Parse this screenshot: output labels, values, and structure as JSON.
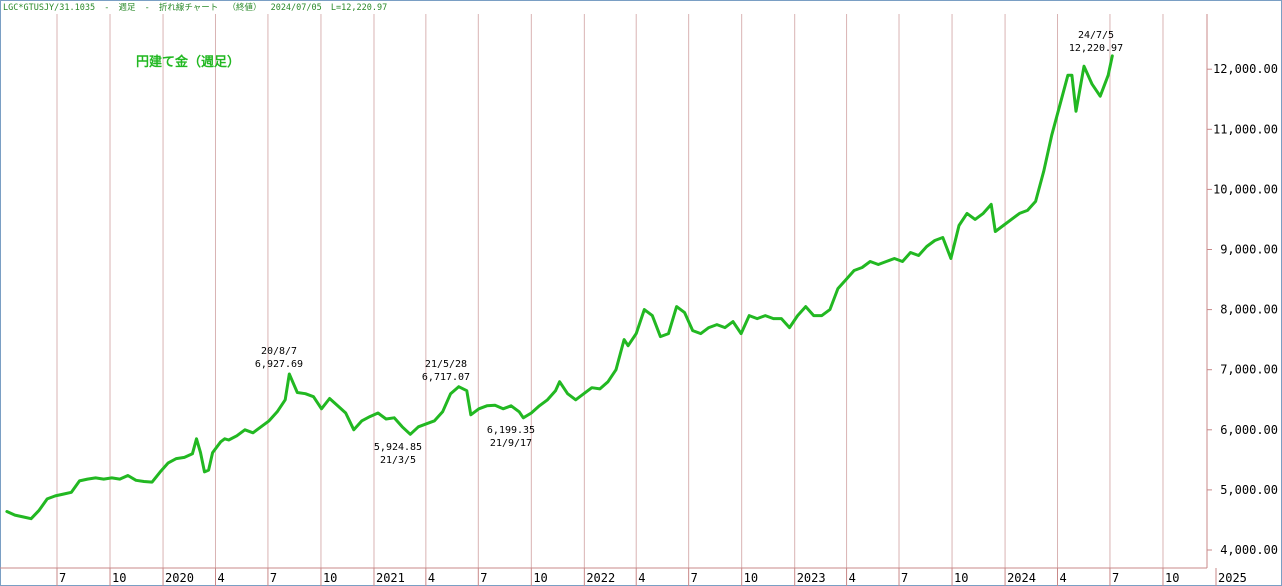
{
  "header": {
    "symbol": "LGC*GTUSJY/31.1035",
    "sep1": "-",
    "period": "週足",
    "sep2": "-",
    "chart_kind": "折れ線チャート",
    "price_kind": "（終値）",
    "date": "2024/07/05",
    "last": "L=12,220.97"
  },
  "colors": {
    "line": "#22b822",
    "title": "#22b822",
    "header": "#2a8a2a",
    "grid": "#d9b3b3",
    "text": "#000000"
  },
  "chart_data": {
    "type": "line",
    "title": "円建て金（週足）",
    "xlabel": "",
    "ylabel": "",
    "ylim": [
      3900,
      13000
    ],
    "grid": true,
    "grid_orientation": "vertical",
    "y_axis_position": "right",
    "y_ticks": [
      {
        "value": 4000,
        "label": "4,000.00"
      },
      {
        "value": 5000,
        "label": "5,000.00"
      },
      {
        "value": 6000,
        "label": "6,000.00"
      },
      {
        "value": 7000,
        "label": "7,000.00"
      },
      {
        "value": 8000,
        "label": "8,000.00"
      },
      {
        "value": 9000,
        "label": "9,000.00"
      },
      {
        "value": 10000,
        "label": "10,000.00"
      },
      {
        "value": 11000,
        "label": "11,000.00"
      },
      {
        "value": 12000,
        "label": "12,000.00"
      }
    ],
    "x_ticks": [
      {
        "date": "2019-07-01",
        "label": "7"
      },
      {
        "date": "2019-10-01",
        "label": "10"
      },
      {
        "date": "2020-01-01",
        "label": "2020"
      },
      {
        "date": "2020-04-01",
        "label": "4"
      },
      {
        "date": "2020-07-01",
        "label": "7"
      },
      {
        "date": "2020-10-01",
        "label": "10"
      },
      {
        "date": "2021-01-01",
        "label": "2021"
      },
      {
        "date": "2021-04-01",
        "label": "4"
      },
      {
        "date": "2021-07-01",
        "label": "7"
      },
      {
        "date": "2021-10-01",
        "label": "10"
      },
      {
        "date": "2022-01-01",
        "label": "2022"
      },
      {
        "date": "2022-04-01",
        "label": "4"
      },
      {
        "date": "2022-07-01",
        "label": "7"
      },
      {
        "date": "2022-10-01",
        "label": "10"
      },
      {
        "date": "2023-01-01",
        "label": "2023"
      },
      {
        "date": "2023-04-01",
        "label": "4"
      },
      {
        "date": "2023-07-01",
        "label": "7"
      },
      {
        "date": "2023-10-01",
        "label": "10"
      },
      {
        "date": "2024-01-01",
        "label": "2024"
      },
      {
        "date": "2024-04-01",
        "label": "4"
      },
      {
        "date": "2024-07-01",
        "label": "7"
      },
      {
        "date": "2024-10-01",
        "label": "10"
      },
      {
        "date": "2025-01-01",
        "label": "2025"
      }
    ],
    "series": [
      {
        "points": [
          [
            "2019-04-05",
            4640
          ],
          [
            "2019-04-19",
            4580
          ],
          [
            "2019-05-03",
            4550
          ],
          [
            "2019-05-17",
            4520
          ],
          [
            "2019-05-31",
            4660
          ],
          [
            "2019-06-14",
            4850
          ],
          [
            "2019-06-28",
            4900
          ],
          [
            "2019-07-12",
            4930
          ],
          [
            "2019-07-26",
            4960
          ],
          [
            "2019-08-09",
            5150
          ],
          [
            "2019-08-23",
            5180
          ],
          [
            "2019-09-06",
            5200
          ],
          [
            "2019-09-20",
            5180
          ],
          [
            "2019-10-04",
            5200
          ],
          [
            "2019-10-18",
            5180
          ],
          [
            "2019-11-01",
            5240
          ],
          [
            "2019-11-15",
            5160
          ],
          [
            "2019-11-29",
            5140
          ],
          [
            "2019-12-13",
            5130
          ],
          [
            "2019-12-27",
            5300
          ],
          [
            "2020-01-10",
            5450
          ],
          [
            "2020-01-24",
            5520
          ],
          [
            "2020-02-07",
            5540
          ],
          [
            "2020-02-21",
            5600
          ],
          [
            "2020-02-28",
            5850
          ],
          [
            "2020-03-06",
            5620
          ],
          [
            "2020-03-13",
            5300
          ],
          [
            "2020-03-20",
            5330
          ],
          [
            "2020-03-27",
            5620
          ],
          [
            "2020-04-10",
            5800
          ],
          [
            "2020-04-17",
            5850
          ],
          [
            "2020-04-24",
            5830
          ],
          [
            "2020-05-08",
            5900
          ],
          [
            "2020-05-22",
            6000
          ],
          [
            "2020-06-05",
            5950
          ],
          [
            "2020-06-19",
            6050
          ],
          [
            "2020-07-03",
            6150
          ],
          [
            "2020-07-17",
            6300
          ],
          [
            "2020-07-31",
            6500
          ],
          [
            "2020-08-07",
            6928
          ],
          [
            "2020-08-21",
            6620
          ],
          [
            "2020-09-04",
            6600
          ],
          [
            "2020-09-18",
            6550
          ],
          [
            "2020-10-02",
            6350
          ],
          [
            "2020-10-16",
            6520
          ],
          [
            "2020-10-30",
            6400
          ],
          [
            "2020-11-13",
            6280
          ],
          [
            "2020-11-27",
            6000
          ],
          [
            "2020-12-11",
            6150
          ],
          [
            "2020-12-25",
            6220
          ],
          [
            "2021-01-08",
            6280
          ],
          [
            "2021-01-22",
            6180
          ],
          [
            "2021-02-05",
            6200
          ],
          [
            "2021-02-19",
            6050
          ],
          [
            "2021-03-05",
            5925
          ],
          [
            "2021-03-19",
            6050
          ],
          [
            "2021-04-02",
            6100
          ],
          [
            "2021-04-16",
            6150
          ],
          [
            "2021-04-30",
            6300
          ],
          [
            "2021-05-14",
            6600
          ],
          [
            "2021-05-28",
            6717
          ],
          [
            "2021-06-11",
            6650
          ],
          [
            "2021-06-18",
            6250
          ],
          [
            "2021-07-02",
            6350
          ],
          [
            "2021-07-16",
            6400
          ],
          [
            "2021-07-30",
            6410
          ],
          [
            "2021-08-13",
            6350
          ],
          [
            "2021-08-27",
            6400
          ],
          [
            "2021-09-10",
            6300
          ],
          [
            "2021-09-17",
            6199
          ],
          [
            "2021-10-01",
            6280
          ],
          [
            "2021-10-15",
            6400
          ],
          [
            "2021-10-29",
            6500
          ],
          [
            "2021-11-12",
            6650
          ],
          [
            "2021-11-19",
            6800
          ],
          [
            "2021-12-03",
            6600
          ],
          [
            "2021-12-17",
            6500
          ],
          [
            "2021-12-31",
            6600
          ],
          [
            "2022-01-14",
            6700
          ],
          [
            "2022-01-28",
            6680
          ],
          [
            "2022-02-11",
            6800
          ],
          [
            "2022-02-25",
            7000
          ],
          [
            "2022-03-11",
            7500
          ],
          [
            "2022-03-18",
            7400
          ],
          [
            "2022-04-01",
            7600
          ],
          [
            "2022-04-15",
            8000
          ],
          [
            "2022-04-29",
            7900
          ],
          [
            "2022-05-13",
            7550
          ],
          [
            "2022-05-27",
            7600
          ],
          [
            "2022-06-10",
            8050
          ],
          [
            "2022-06-24",
            7950
          ],
          [
            "2022-07-08",
            7650
          ],
          [
            "2022-07-22",
            7600
          ],
          [
            "2022-08-05",
            7700
          ],
          [
            "2022-08-19",
            7750
          ],
          [
            "2022-09-02",
            7700
          ],
          [
            "2022-09-16",
            7800
          ],
          [
            "2022-09-30",
            7600
          ],
          [
            "2022-10-14",
            7900
          ],
          [
            "2022-10-28",
            7850
          ],
          [
            "2022-11-11",
            7900
          ],
          [
            "2022-11-25",
            7850
          ],
          [
            "2022-12-09",
            7850
          ],
          [
            "2022-12-23",
            7700
          ],
          [
            "2023-01-06",
            7900
          ],
          [
            "2023-01-20",
            8050
          ],
          [
            "2023-02-03",
            7900
          ],
          [
            "2023-02-17",
            7900
          ],
          [
            "2023-03-03",
            8000
          ],
          [
            "2023-03-17",
            8350
          ],
          [
            "2023-03-31",
            8500
          ],
          [
            "2023-04-14",
            8650
          ],
          [
            "2023-04-28",
            8700
          ],
          [
            "2023-05-12",
            8800
          ],
          [
            "2023-05-26",
            8750
          ],
          [
            "2023-06-09",
            8800
          ],
          [
            "2023-06-23",
            8850
          ],
          [
            "2023-07-07",
            8800
          ],
          [
            "2023-07-21",
            8950
          ],
          [
            "2023-08-04",
            8900
          ],
          [
            "2023-08-18",
            9050
          ],
          [
            "2023-09-01",
            9150
          ],
          [
            "2023-09-15",
            9200
          ],
          [
            "2023-09-29",
            8850
          ],
          [
            "2023-10-13",
            9400
          ],
          [
            "2023-10-27",
            9600
          ],
          [
            "2023-11-10",
            9500
          ],
          [
            "2023-11-24",
            9600
          ],
          [
            "2023-12-08",
            9750
          ],
          [
            "2023-12-15",
            9300
          ],
          [
            "2023-12-29",
            9400
          ],
          [
            "2024-01-12",
            9500
          ],
          [
            "2024-01-26",
            9600
          ],
          [
            "2024-02-09",
            9650
          ],
          [
            "2024-02-23",
            9800
          ],
          [
            "2024-03-08",
            10300
          ],
          [
            "2024-03-22",
            10900
          ],
          [
            "2024-04-05",
            11400
          ],
          [
            "2024-04-19",
            11900
          ],
          [
            "2024-04-26",
            11900
          ],
          [
            "2024-05-03",
            11300
          ],
          [
            "2024-05-17",
            12050
          ],
          [
            "2024-05-31",
            11750
          ],
          [
            "2024-06-14",
            11550
          ],
          [
            "2024-06-28",
            11900
          ],
          [
            "2024-07-05",
            12221
          ]
        ]
      }
    ],
    "annotations": [
      {
        "date_label": "20/8/7",
        "value_label": "6,927.69",
        "type": "high"
      },
      {
        "date_label": "21/3/5",
        "value_label": "5,924.85",
        "type": "low"
      },
      {
        "date_label": "21/5/28",
        "value_label": "6,717.07",
        "type": "high"
      },
      {
        "date_label": "21/9/17",
        "value_label": "6,199.35",
        "type": "low"
      },
      {
        "date_label": "24/7/5",
        "value_label": "12,220.97",
        "type": "high"
      }
    ]
  }
}
